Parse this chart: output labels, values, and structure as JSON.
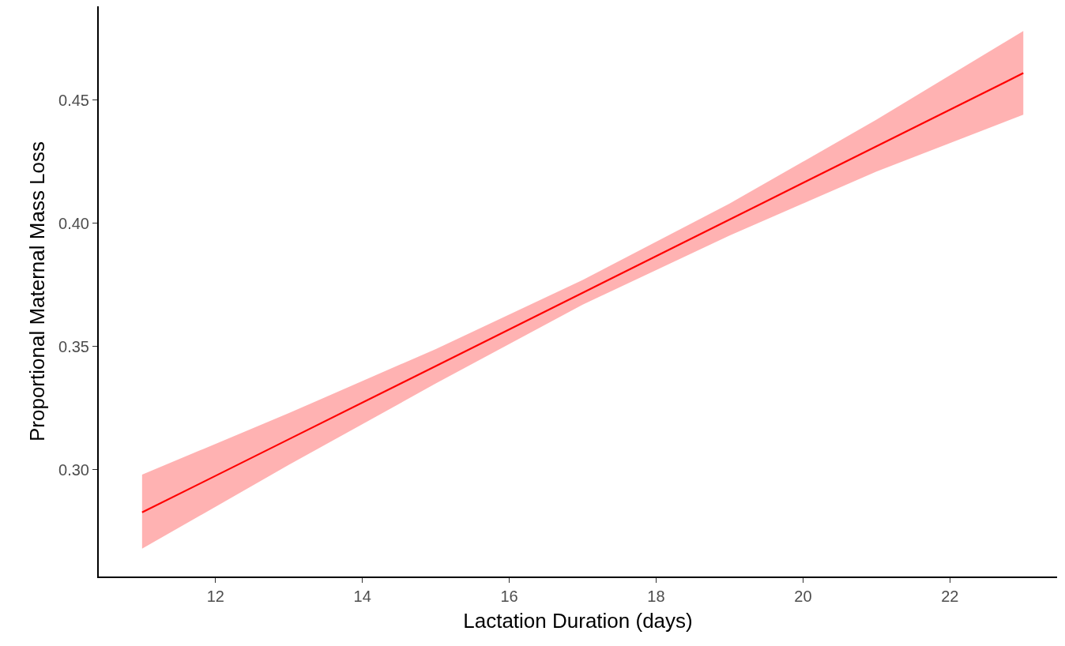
{
  "chart_data": {
    "type": "line",
    "xlabel": "Lactation Duration (days)",
    "ylabel": "Proportional Maternal Mass Loss",
    "x": [
      11,
      13,
      15,
      17,
      19,
      21,
      23
    ],
    "series": [
      {
        "color": "#ff0000",
        "values": [
          0.2827,
          0.3124,
          0.3421,
          0.3718,
          0.4015,
          0.4312,
          0.4609
        ],
        "lower": [
          0.268,
          0.302,
          0.335,
          0.367,
          0.395,
          0.421,
          0.444
        ],
        "upper": [
          0.298,
          0.323,
          0.349,
          0.377,
          0.408,
          0.442,
          0.478
        ]
      }
    ],
    "xlim": [
      10.41,
      23.46
    ],
    "ylim": [
      0.2567,
      0.488
    ],
    "xticks": [
      12,
      14,
      16,
      18,
      20,
      22
    ],
    "yticks": [
      {
        "value": 0.3,
        "label": "0.30"
      },
      0.35,
      {
        "value": 0.4,
        "label": "0.40"
      },
      0.45
    ],
    "grid": false,
    "marker": "none",
    "line_style": "solid"
  }
}
